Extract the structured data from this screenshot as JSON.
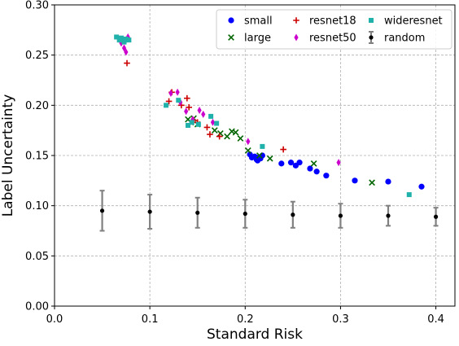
{
  "chart_data": {
    "type": "scatter",
    "xlabel": "Standard Risk",
    "ylabel": "Label Uncertainty",
    "xlim": [
      0.0,
      0.42
    ],
    "ylim": [
      0.0,
      0.3
    ],
    "xticks": [
      0.0,
      0.1,
      0.2,
      0.3,
      0.4
    ],
    "xtick_labels": [
      "0.0",
      "0.1",
      "0.2",
      "0.3",
      "0.4"
    ],
    "yticks": [
      0.0,
      0.05,
      0.1,
      0.15,
      0.2,
      0.25,
      0.3
    ],
    "ytick_labels": [
      "0.00",
      "0.05",
      "0.10",
      "0.15",
      "0.20",
      "0.25",
      "0.30"
    ],
    "grid": true,
    "legend_position": "top-right",
    "legend_columns": 3,
    "series": [
      {
        "name": "small",
        "marker": "circle",
        "color": "#0000ff",
        "points": [
          [
            0.205,
            0.151
          ],
          [
            0.207,
            0.148
          ],
          [
            0.21,
            0.149
          ],
          [
            0.212,
            0.146
          ],
          [
            0.214,
            0.148
          ],
          [
            0.216,
            0.147
          ],
          [
            0.218,
            0.15
          ],
          [
            0.213,
            0.145
          ],
          [
            0.238,
            0.142
          ],
          [
            0.248,
            0.143
          ],
          [
            0.253,
            0.14
          ],
          [
            0.257,
            0.143
          ],
          [
            0.268,
            0.137
          ],
          [
            0.275,
            0.134
          ],
          [
            0.285,
            0.13
          ],
          [
            0.315,
            0.125
          ],
          [
            0.35,
            0.124
          ],
          [
            0.385,
            0.119
          ]
        ]
      },
      {
        "name": "large",
        "marker": "x",
        "color": "#006400",
        "points": [
          [
            0.14,
            0.186
          ],
          [
            0.143,
            0.183
          ],
          [
            0.146,
            0.187
          ],
          [
            0.15,
            0.181
          ],
          [
            0.168,
            0.175
          ],
          [
            0.174,
            0.172
          ],
          [
            0.181,
            0.169
          ],
          [
            0.186,
            0.174
          ],
          [
            0.19,
            0.173
          ],
          [
            0.195,
            0.167
          ],
          [
            0.203,
            0.155
          ],
          [
            0.215,
            0.15
          ],
          [
            0.226,
            0.147
          ],
          [
            0.272,
            0.142
          ],
          [
            0.333,
            0.123
          ]
        ]
      },
      {
        "name": "resnet18",
        "marker": "plus",
        "color": "#cc0000",
        "points": [
          [
            0.076,
            0.242
          ],
          [
            0.12,
            0.204
          ],
          [
            0.123,
            0.213
          ],
          [
            0.133,
            0.2
          ],
          [
            0.139,
            0.207
          ],
          [
            0.141,
            0.198
          ],
          [
            0.146,
            0.185
          ],
          [
            0.15,
            0.183
          ],
          [
            0.16,
            0.178
          ],
          [
            0.163,
            0.171
          ],
          [
            0.173,
            0.169
          ],
          [
            0.24,
            0.156
          ]
        ]
      },
      {
        "name": "resnet50",
        "marker": "thin-diamond",
        "color": "#cc00cc",
        "points": [
          [
            0.07,
            0.262
          ],
          [
            0.073,
            0.257
          ],
          [
            0.075,
            0.253
          ],
          [
            0.077,
            0.268
          ],
          [
            0.122,
            0.212
          ],
          [
            0.129,
            0.213
          ],
          [
            0.132,
            0.203
          ],
          [
            0.138,
            0.194
          ],
          [
            0.145,
            0.186
          ],
          [
            0.152,
            0.195
          ],
          [
            0.156,
            0.191
          ],
          [
            0.166,
            0.183
          ],
          [
            0.203,
            0.164
          ],
          [
            0.298,
            0.143
          ]
        ]
      },
      {
        "name": "wideresnet",
        "marker": "square",
        "color": "#20b2aa",
        "points": [
          [
            0.065,
            0.268
          ],
          [
            0.068,
            0.265
          ],
          [
            0.07,
            0.267
          ],
          [
            0.073,
            0.263
          ],
          [
            0.075,
            0.266
          ],
          [
            0.078,
            0.265
          ],
          [
            0.117,
            0.2
          ],
          [
            0.13,
            0.205
          ],
          [
            0.14,
            0.18
          ],
          [
            0.144,
            0.183
          ],
          [
            0.151,
            0.181
          ],
          [
            0.164,
            0.189
          ],
          [
            0.17,
            0.182
          ],
          [
            0.218,
            0.159
          ],
          [
            0.372,
            0.111
          ]
        ]
      },
      {
        "name": "random",
        "marker": "errorbar",
        "color": "#000000",
        "errorbar_color": "#808080",
        "points": [
          [
            0.05,
            0.095
          ],
          [
            0.1,
            0.094
          ],
          [
            0.15,
            0.093
          ],
          [
            0.2,
            0.092
          ],
          [
            0.25,
            0.091
          ],
          [
            0.3,
            0.09
          ],
          [
            0.35,
            0.09
          ],
          [
            0.4,
            0.089
          ]
        ],
        "errors": [
          0.02,
          0.017,
          0.015,
          0.014,
          0.013,
          0.012,
          0.01,
          0.009
        ]
      }
    ]
  }
}
